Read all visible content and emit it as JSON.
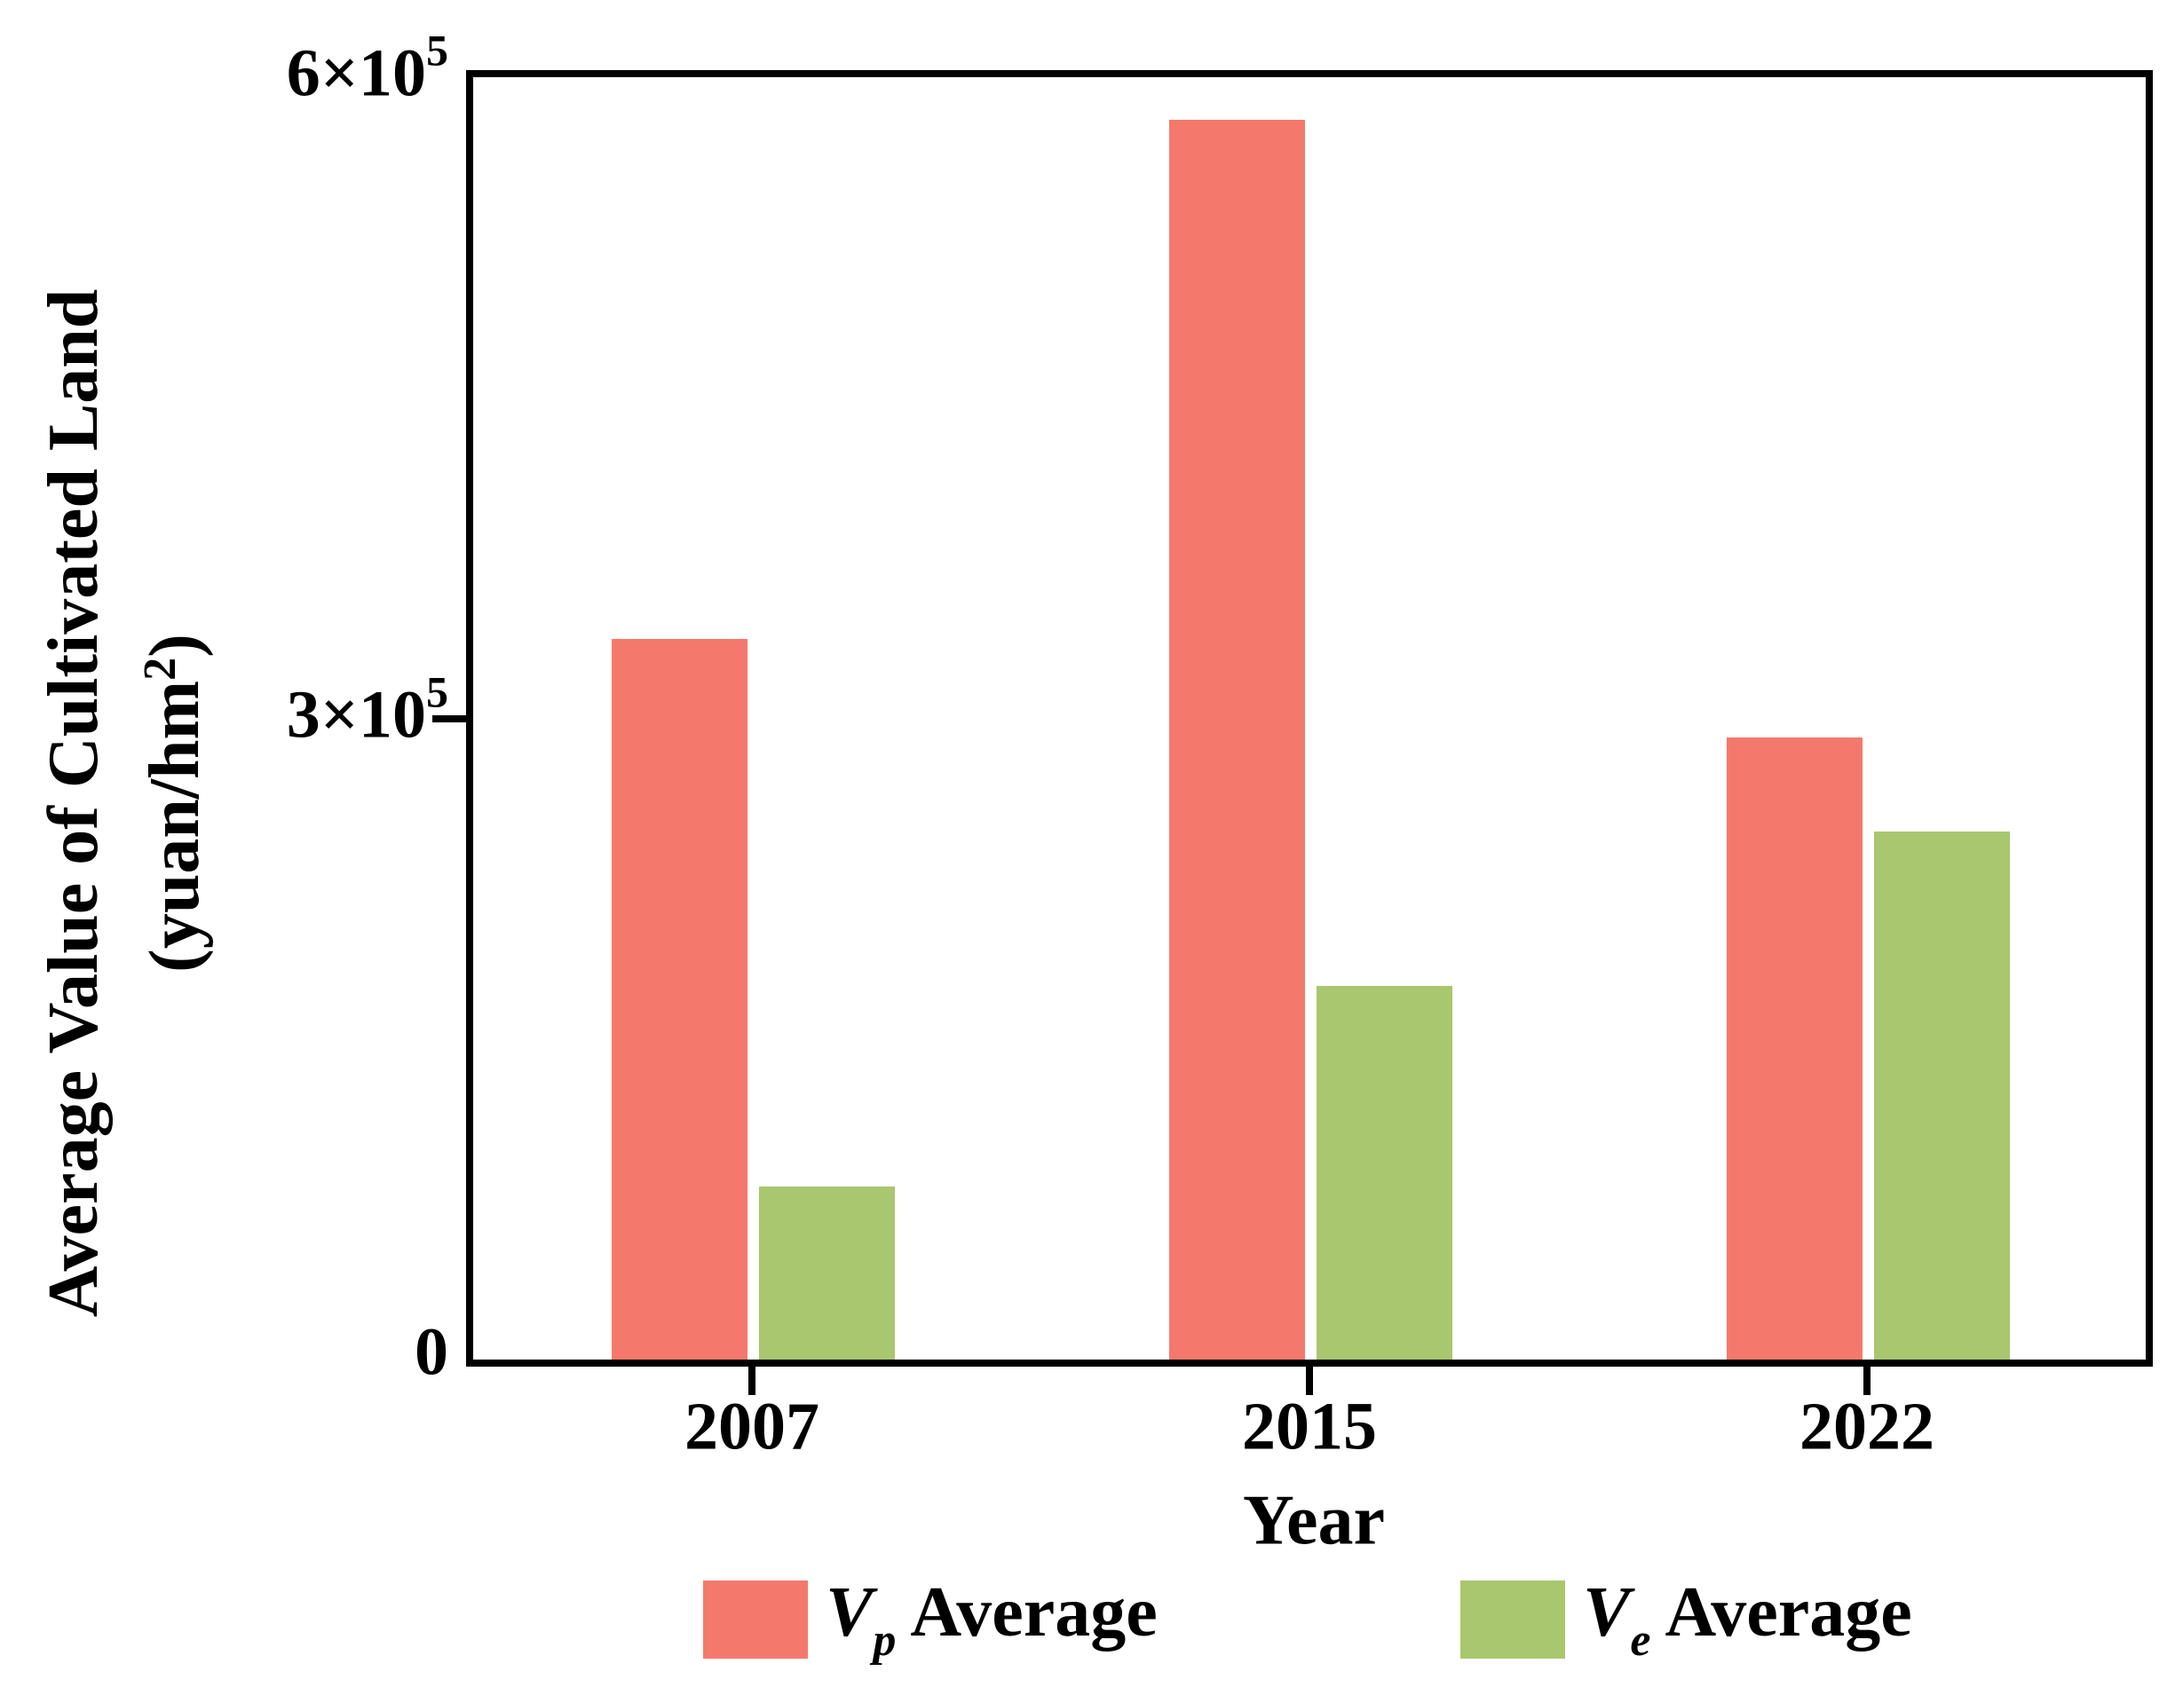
{
  "chart_data": {
    "type": "bar",
    "title": "",
    "categories": [
      "2007",
      "2015",
      "2022"
    ],
    "series": [
      {
        "name": "Vp Average",
        "symbol": "V",
        "sub": "p",
        "rest": "Average",
        "color": "#F4796C",
        "values": [
          337000,
          580000,
          291000
        ]
      },
      {
        "name": "Ve Average",
        "symbol": "V",
        "sub": "e",
        "rest": "Average",
        "color": "#A9C76E",
        "values": [
          81000,
          175000,
          247000
        ]
      }
    ],
    "xlabel": "Year",
    "ylabel": "Average Value of Cultivated Land (yuan/hm²)",
    "ylim": [
      0,
      600000
    ],
    "yticks": [
      0,
      300000,
      600000
    ],
    "grid": false,
    "legend_position": "bottom"
  },
  "y_axis": {
    "label_line1": "Average Value of Cultivated Land",
    "label_line2_pre": "(yuan/hm",
    "label_line2_sup": "2",
    "label_line2_post": ")",
    "ticks": [
      {
        "text": "0",
        "sup": "",
        "value": 0
      },
      {
        "text": "3×10",
        "sup": "5",
        "value": 300000
      },
      {
        "text": "6×10",
        "sup": "5",
        "value": 600000
      }
    ]
  },
  "x_axis": {
    "label": "Year"
  },
  "colors": {
    "vp_bar": "#F4796C",
    "ve_bar": "#A9C76E",
    "axis": "#000000",
    "background": "#FFFFFF"
  }
}
